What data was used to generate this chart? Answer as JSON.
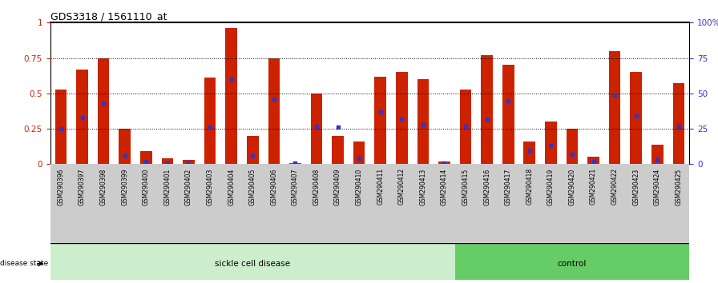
{
  "title": "GDS3318 / 1561110_at",
  "samples": [
    "GSM290396",
    "GSM290397",
    "GSM290398",
    "GSM290399",
    "GSM290400",
    "GSM290401",
    "GSM290402",
    "GSM290403",
    "GSM290404",
    "GSM290405",
    "GSM290406",
    "GSM290407",
    "GSM290408",
    "GSM290409",
    "GSM290410",
    "GSM290411",
    "GSM290412",
    "GSM290413",
    "GSM290414",
    "GSM290415",
    "GSM290416",
    "GSM290417",
    "GSM290418",
    "GSM290419",
    "GSM290420",
    "GSM290421",
    "GSM290422",
    "GSM290423",
    "GSM290424",
    "GSM290425"
  ],
  "transformed_count": [
    0.53,
    0.67,
    0.75,
    0.25,
    0.09,
    0.04,
    0.03,
    0.61,
    0.96,
    0.2,
    0.75,
    0.01,
    0.5,
    0.2,
    0.16,
    0.62,
    0.65,
    0.6,
    0.02,
    0.53,
    0.77,
    0.7,
    0.16,
    0.3,
    0.25,
    0.05,
    0.8,
    0.65,
    0.14,
    0.57
  ],
  "percentile_rank": [
    0.25,
    0.33,
    0.43,
    0.06,
    0.02,
    0.01,
    0.01,
    0.26,
    0.6,
    0.06,
    0.46,
    0.01,
    0.27,
    0.26,
    0.04,
    0.37,
    0.32,
    0.28,
    0.01,
    0.27,
    0.32,
    0.45,
    0.1,
    0.13,
    0.07,
    0.02,
    0.49,
    0.34,
    0.03,
    0.27
  ],
  "sickle_count": 19,
  "control_count": 11,
  "bar_color": "#CC2200",
  "dot_color": "#3333CC",
  "sickle_bg": "#CCEECC",
  "control_bg": "#66CC66",
  "label_bg": "#CCCCCC",
  "yticks_left": [
    0,
    0.25,
    0.5,
    0.75,
    1.0
  ],
  "ytick_left_labels": [
    "0",
    "0.25",
    "0.5",
    "0.75",
    "1"
  ],
  "yticks_right_labels": [
    "0",
    "25",
    "50",
    "75",
    "100%"
  ],
  "ylabel_left_color": "#CC2200",
  "ylabel_right_color": "#3333CC",
  "figsize": [
    8.96,
    3.54
  ],
  "dpi": 100
}
